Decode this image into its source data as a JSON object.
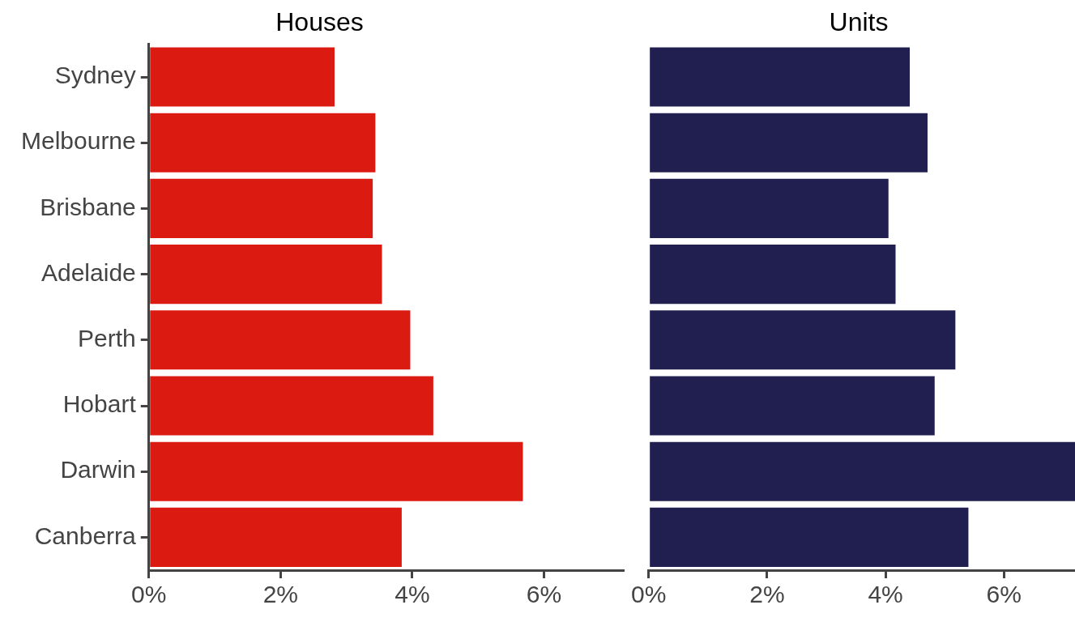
{
  "chart_data": [
    {
      "type": "bar",
      "orientation": "horizontal",
      "title": "Houses",
      "categories": [
        "Sydney",
        "Melbourne",
        "Brisbane",
        "Adelaide",
        "Perth",
        "Hobart",
        "Darwin",
        "Canberra"
      ],
      "values": [
        2.82,
        3.44,
        3.4,
        3.54,
        3.97,
        4.32,
        5.68,
        3.84
      ],
      "color": "#db1a12",
      "xlim": [
        0,
        7.2
      ],
      "xticks": [
        {
          "value": 0,
          "label": "0%"
        },
        {
          "value": 2,
          "label": "2%"
        },
        {
          "value": 4,
          "label": "4%"
        },
        {
          "value": 6,
          "label": "6%"
        }
      ],
      "grid": false,
      "legend": false
    },
    {
      "type": "bar",
      "orientation": "horizontal",
      "title": "Units",
      "categories": [
        null,
        null,
        null,
        null,
        null,
        null,
        null,
        null
      ],
      "values": [
        4.41,
        4.71,
        4.05,
        4.17,
        5.18,
        4.83,
        7.2,
        5.4
      ],
      "color": "#201f50",
      "xlim": [
        0,
        7.2
      ],
      "xticks": [
        {
          "value": 0,
          "label": "0%"
        },
        {
          "value": 2,
          "label": "2%"
        },
        {
          "value": 4,
          "label": "4%"
        },
        {
          "value": 6,
          "label": "6%"
        }
      ],
      "grid": false,
      "legend": false,
      "tick_labels": "x"
    }
  ]
}
